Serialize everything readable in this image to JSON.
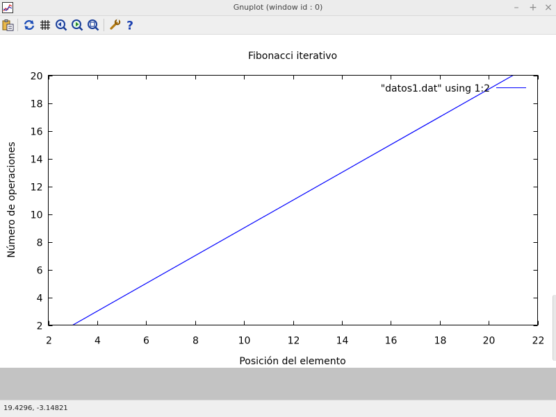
{
  "window": {
    "title": "Gnuplot (window id : 0)",
    "controls": [
      "–",
      "+",
      "×"
    ]
  },
  "toolbar": {
    "buttons": [
      {
        "name": "copy-clipboard",
        "icon": "clipboard-icon"
      },
      {
        "name": "replot",
        "icon": "refresh-icon"
      },
      {
        "name": "grid",
        "icon": "grid-icon"
      },
      {
        "name": "previous-zoom",
        "icon": "zoom-previous-icon"
      },
      {
        "name": "next-zoom",
        "icon": "zoom-next-icon"
      },
      {
        "name": "autoscale",
        "icon": "zoom-autoscale-icon"
      },
      {
        "name": "settings",
        "icon": "wrench-icon"
      },
      {
        "name": "help",
        "icon": "help-icon"
      }
    ]
  },
  "status": {
    "coords": "19.4296, -3.14821"
  },
  "chart_data": {
    "type": "line",
    "title": "Fibonacci iterativo",
    "xlabel": "Posición del elemento",
    "ylabel": "Número de operaciones",
    "xlim": [
      2,
      22
    ],
    "ylim": [
      2,
      20
    ],
    "xticks": [
      2,
      4,
      6,
      8,
      10,
      12,
      14,
      16,
      18,
      20,
      22
    ],
    "yticks": [
      2,
      4,
      6,
      8,
      10,
      12,
      14,
      16,
      18,
      20
    ],
    "legend_position": "top-right",
    "grid": false,
    "series": [
      {
        "name": "\"datos1.dat\" using 1:2",
        "color": "#0000ff",
        "x": [
          3,
          21
        ],
        "y": [
          2,
          20
        ]
      }
    ]
  }
}
